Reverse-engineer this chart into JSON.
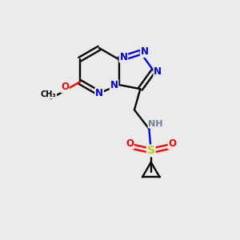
{
  "bg": "#ebebeb",
  "bond_color": "#000000",
  "N_color": "#0000ee",
  "O_color": "#ff0000",
  "S_color": "#cccc00",
  "H_color": "#708090",
  "lw": 1.7,
  "bl": 0.95,
  "figsize": [
    3.0,
    3.0
  ],
  "dpi": 100,
  "xlim": [
    0,
    10
  ],
  "ylim": [
    0,
    10
  ]
}
